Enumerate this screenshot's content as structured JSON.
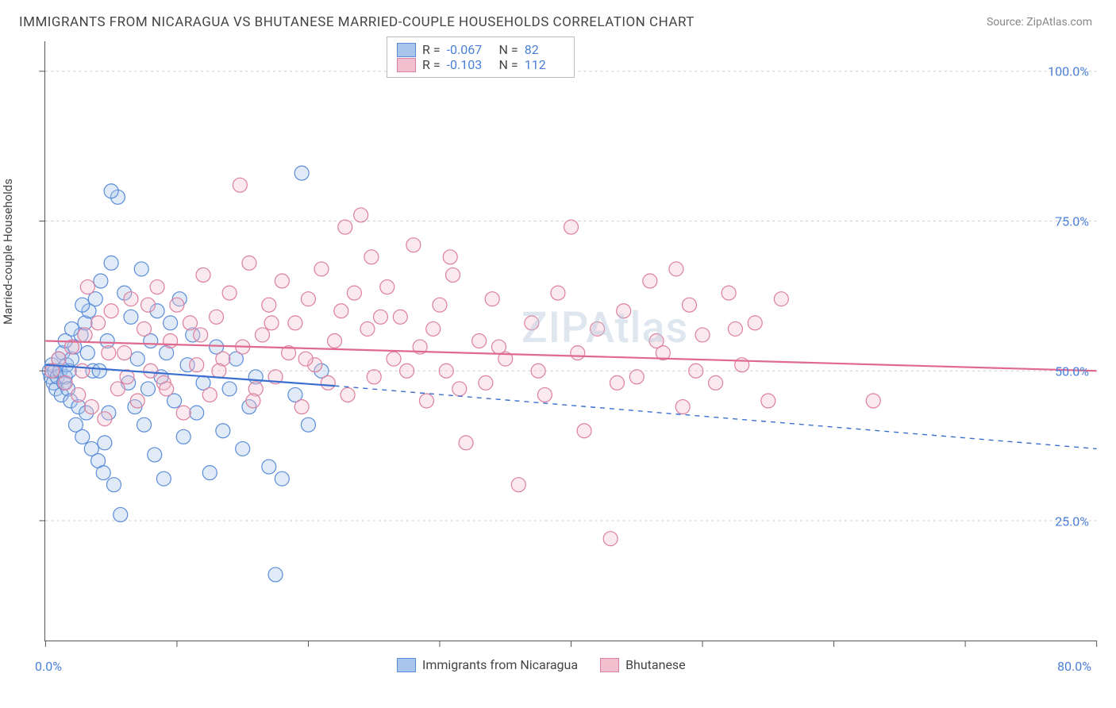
{
  "header": {
    "title": "IMMIGRANTS FROM NICARAGUA VS BHUTANESE MARRIED-COUPLE HOUSEHOLDS CORRELATION CHART",
    "source": "Source: ZipAtlas.com"
  },
  "watermark": "ZIPAtlas",
  "chart": {
    "type": "scatter",
    "background_color": "#ffffff",
    "grid_color": "#cccccc",
    "axis_color": "#555555",
    "xlim": [
      0,
      80
    ],
    "ylim": [
      5,
      105
    ],
    "x_ticks": [
      0,
      10,
      20,
      30,
      40,
      50,
      60,
      70,
      80
    ],
    "x_tick_labels_shown": {
      "left": "0.0%",
      "right": "80.0%"
    },
    "y_ticks": [
      25,
      50,
      75,
      100
    ],
    "y_tick_labels": [
      "25.0%",
      "50.0%",
      "75.0%",
      "100.0%"
    ],
    "y_axis_label": "Married-couple Households",
    "marker_radius": 9,
    "marker_fill_opacity": 0.35,
    "marker_stroke_width": 1.2,
    "line_width": 2.2
  },
  "series": [
    {
      "name": "Immigrants from Nicaragua",
      "color": "#6f9fe3",
      "fill": "#a9c5ec",
      "stroke": "#5a8cd8",
      "R": "-0.067",
      "N": "82",
      "trend": {
        "x1": 0,
        "y1": 51,
        "x2": 22,
        "y2": 47.5,
        "x2_dash": 80,
        "y2_dash": 37
      },
      "points": [
        [
          0.3,
          50
        ],
        [
          0.4,
          49
        ],
        [
          0.5,
          51
        ],
        [
          0.6,
          48
        ],
        [
          0.7,
          50
        ],
        [
          0.8,
          47
        ],
        [
          0.9,
          49
        ],
        [
          1.0,
          52
        ],
        [
          1.1,
          50
        ],
        [
          1.2,
          46
        ],
        [
          1.3,
          53
        ],
        [
          1.4,
          48
        ],
        [
          1.5,
          49
        ],
        [
          1.6,
          51
        ],
        [
          1.7,
          47
        ],
        [
          1.8,
          50
        ],
        [
          1.9,
          45
        ],
        [
          2.0,
          52
        ],
        [
          2.2,
          54
        ],
        [
          2.3,
          41
        ],
        [
          2.5,
          44
        ],
        [
          2.7,
          56
        ],
        [
          2.8,
          39
        ],
        [
          3.0,
          58
        ],
        [
          3.1,
          43
        ],
        [
          3.3,
          60
        ],
        [
          3.5,
          37
        ],
        [
          3.6,
          50
        ],
        [
          3.8,
          62
        ],
        [
          4.0,
          35
        ],
        [
          4.2,
          65
        ],
        [
          4.4,
          33
        ],
        [
          4.5,
          38
        ],
        [
          4.7,
          55
        ],
        [
          5.0,
          68
        ],
        [
          5.2,
          31
        ],
        [
          5.5,
          79
        ],
        [
          5.7,
          26
        ],
        [
          6.0,
          63
        ],
        [
          6.3,
          48
        ],
        [
          6.5,
          59
        ],
        [
          6.8,
          44
        ],
        [
          7.0,
          52
        ],
        [
          7.3,
          67
        ],
        [
          7.5,
          41
        ],
        [
          7.8,
          47
        ],
        [
          8.0,
          55
        ],
        [
          8.3,
          36
        ],
        [
          8.5,
          60
        ],
        [
          8.8,
          49
        ],
        [
          9.0,
          32
        ],
        [
          9.2,
          53
        ],
        [
          9.5,
          58
        ],
        [
          9.8,
          45
        ],
        [
          10.2,
          62
        ],
        [
          10.5,
          39
        ],
        [
          10.8,
          51
        ],
        [
          11.2,
          56
        ],
        [
          11.5,
          43
        ],
        [
          12.0,
          48
        ],
        [
          12.5,
          33
        ],
        [
          13.0,
          54
        ],
        [
          13.5,
          40
        ],
        [
          14.0,
          47
        ],
        [
          14.5,
          52
        ],
        [
          15.0,
          37
        ],
        [
          15.5,
          44
        ],
        [
          16.0,
          49
        ],
        [
          17.0,
          34
        ],
        [
          17.5,
          16
        ],
        [
          18.0,
          32
        ],
        [
          19.0,
          46
        ],
        [
          19.5,
          83
        ],
        [
          20.0,
          41
        ],
        [
          21.0,
          50
        ],
        [
          1.5,
          55
        ],
        [
          2.0,
          57
        ],
        [
          2.8,
          61
        ],
        [
          3.2,
          53
        ],
        [
          4.1,
          50
        ],
        [
          5.0,
          80
        ],
        [
          4.8,
          43
        ]
      ]
    },
    {
      "name": "Bhutanese",
      "color": "#e89bb3",
      "fill": "#f2bfcf",
      "stroke": "#dd7f9e",
      "R": "-0.103",
      "N": "112",
      "trend": {
        "x1": 0,
        "y1": 55,
        "x2": 80,
        "y2": 50
      },
      "points": [
        [
          0.5,
          50
        ],
        [
          1.0,
          52
        ],
        [
          1.5,
          48
        ],
        [
          2.0,
          54
        ],
        [
          2.5,
          46
        ],
        [
          3.0,
          56
        ],
        [
          3.5,
          44
        ],
        [
          4.0,
          58
        ],
        [
          4.5,
          42
        ],
        [
          5.0,
          60
        ],
        [
          5.5,
          47
        ],
        [
          6.0,
          53
        ],
        [
          6.5,
          62
        ],
        [
          7.0,
          45
        ],
        [
          7.5,
          57
        ],
        [
          8.0,
          50
        ],
        [
          8.5,
          64
        ],
        [
          9.0,
          48
        ],
        [
          9.5,
          55
        ],
        [
          10.0,
          61
        ],
        [
          10.5,
          43
        ],
        [
          11.0,
          58
        ],
        [
          11.5,
          51
        ],
        [
          12.0,
          66
        ],
        [
          12.5,
          46
        ],
        [
          13.0,
          59
        ],
        [
          13.5,
          52
        ],
        [
          14.0,
          63
        ],
        [
          14.8,
          81
        ],
        [
          15.0,
          54
        ],
        [
          15.5,
          68
        ],
        [
          16.0,
          47
        ],
        [
          16.5,
          56
        ],
        [
          17.0,
          61
        ],
        [
          17.5,
          49
        ],
        [
          18.0,
          65
        ],
        [
          18.5,
          53
        ],
        [
          19.0,
          58
        ],
        [
          19.5,
          44
        ],
        [
          20.0,
          62
        ],
        [
          20.5,
          51
        ],
        [
          21.0,
          67
        ],
        [
          21.5,
          48
        ],
        [
          22.0,
          55
        ],
        [
          22.5,
          60
        ],
        [
          23.0,
          46
        ],
        [
          23.5,
          63
        ],
        [
          24.0,
          76
        ],
        [
          24.5,
          57
        ],
        [
          25.0,
          49
        ],
        [
          26.0,
          64
        ],
        [
          26.5,
          52
        ],
        [
          27.0,
          59
        ],
        [
          28.0,
          71
        ],
        [
          28.5,
          54
        ],
        [
          29.0,
          45
        ],
        [
          30.0,
          61
        ],
        [
          30.5,
          50
        ],
        [
          31.0,
          66
        ],
        [
          32.0,
          38
        ],
        [
          33.0,
          55
        ],
        [
          33.5,
          48
        ],
        [
          34.0,
          62
        ],
        [
          35.0,
          52
        ],
        [
          36.0,
          31
        ],
        [
          37.0,
          58
        ],
        [
          38.0,
          46
        ],
        [
          39.0,
          63
        ],
        [
          40.0,
          74
        ],
        [
          41.0,
          40
        ],
        [
          42.0,
          57
        ],
        [
          43.0,
          22
        ],
        [
          44.0,
          60
        ],
        [
          45.0,
          49
        ],
        [
          46.0,
          65
        ],
        [
          47.0,
          53
        ],
        [
          48.0,
          67
        ],
        [
          48.5,
          44
        ],
        [
          49.0,
          61
        ],
        [
          50.0,
          56
        ],
        [
          51.0,
          48
        ],
        [
          52.0,
          63
        ],
        [
          53.0,
          51
        ],
        [
          54.0,
          58
        ],
        [
          55.0,
          45
        ],
        [
          56.0,
          62
        ],
        [
          2.8,
          50
        ],
        [
          3.2,
          64
        ],
        [
          4.8,
          53
        ],
        [
          6.2,
          49
        ],
        [
          7.8,
          61
        ],
        [
          9.2,
          47
        ],
        [
          11.8,
          56
        ],
        [
          13.2,
          50
        ],
        [
          15.8,
          45
        ],
        [
          17.2,
          58
        ],
        [
          19.8,
          52
        ],
        [
          24.8,
          69
        ],
        [
          27.5,
          50
        ],
        [
          29.5,
          57
        ],
        [
          31.5,
          47
        ],
        [
          34.5,
          54
        ],
        [
          37.5,
          50
        ],
        [
          40.5,
          53
        ],
        [
          43.5,
          48
        ],
        [
          46.5,
          55
        ],
        [
          49.5,
          50
        ],
        [
          52.5,
          57
        ],
        [
          63.0,
          45
        ],
        [
          25.5,
          59
        ],
        [
          22.8,
          74
        ],
        [
          30.8,
          69
        ]
      ]
    }
  ],
  "stats_box": {
    "rows": [
      {
        "swatch_fill": "#a9c5ec",
        "swatch_stroke": "#5a8cd8",
        "R": "-0.067",
        "N": "82"
      },
      {
        "swatch_fill": "#f2bfcf",
        "swatch_stroke": "#dd7f9e",
        "R": "-0.103",
        "N": "112"
      }
    ]
  },
  "bottom_legend": {
    "items": [
      {
        "swatch_fill": "#a9c5ec",
        "swatch_stroke": "#5a8cd8",
        "label": "Immigrants from Nicaragua"
      },
      {
        "swatch_fill": "#f2bfcf",
        "swatch_stroke": "#dd7f9e",
        "label": "Bhutanese"
      }
    ]
  }
}
